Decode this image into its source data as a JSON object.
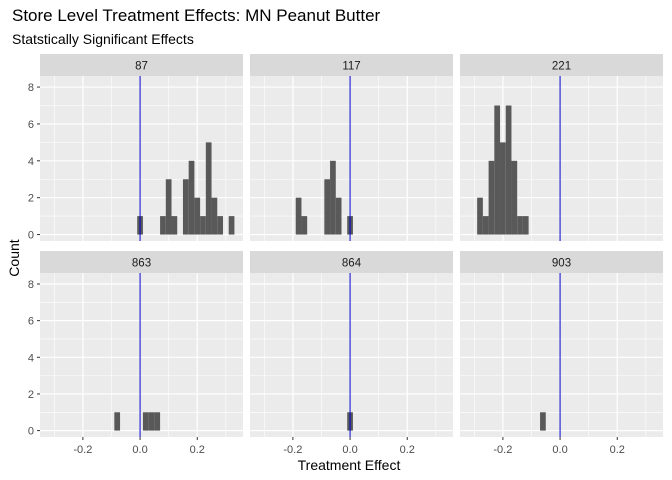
{
  "chart_data": {
    "type": "bar",
    "title": "Store Level Treatment Effects: MN Peanut Butter",
    "subtitle": "Statstically Significant Effects",
    "xlabel": "Treatment Effect",
    "ylabel": "Count",
    "xlim": [
      -0.35,
      0.36
    ],
    "ylim": [
      -0.35,
      8.6
    ],
    "x_ticks": [
      -0.2,
      0.0,
      0.2
    ],
    "x_tick_labels": [
      "-0.2",
      "0.0",
      "0.2"
    ],
    "y_ticks": [
      0,
      2,
      4,
      6,
      8
    ],
    "y_tick_labels": [
      "0",
      "2",
      "4",
      "6",
      "8"
    ],
    "bin_width": 0.02,
    "reference_line": 0,
    "colors": {
      "bar": "#595959",
      "reference_line": "#0000cc",
      "panel": "#ebebeb",
      "strip": "#d9d9d9",
      "grid": "#ffffff"
    },
    "panels": [
      {
        "label": "87",
        "bins": [
          [
            0.0,
            1
          ],
          [
            0.08,
            1
          ],
          [
            0.1,
            3
          ],
          [
            0.12,
            1
          ],
          [
            0.16,
            3
          ],
          [
            0.18,
            4
          ],
          [
            0.2,
            2
          ],
          [
            0.22,
            1
          ],
          [
            0.24,
            5
          ],
          [
            0.26,
            2
          ],
          [
            0.28,
            1
          ],
          [
            0.32,
            1
          ]
        ]
      },
      {
        "label": "117",
        "bins": [
          [
            -0.18,
            2
          ],
          [
            -0.16,
            1
          ],
          [
            -0.08,
            3
          ],
          [
            -0.06,
            4
          ],
          [
            -0.04,
            2
          ],
          [
            0.0,
            1
          ]
        ]
      },
      {
        "label": "221",
        "bins": [
          [
            -0.28,
            2
          ],
          [
            -0.26,
            1
          ],
          [
            -0.24,
            4
          ],
          [
            -0.22,
            7
          ],
          [
            -0.2,
            5
          ],
          [
            -0.18,
            7
          ],
          [
            -0.16,
            4
          ],
          [
            -0.14,
            1
          ],
          [
            -0.12,
            1
          ]
        ]
      },
      {
        "label": "863",
        "bins": [
          [
            -0.08,
            1
          ],
          [
            0.02,
            1
          ],
          [
            0.04,
            1
          ],
          [
            0.06,
            1
          ]
        ]
      },
      {
        "label": "864",
        "bins": [
          [
            0.0,
            1
          ]
        ]
      },
      {
        "label": "903",
        "bins": [
          [
            -0.06,
            1
          ]
        ]
      }
    ]
  }
}
